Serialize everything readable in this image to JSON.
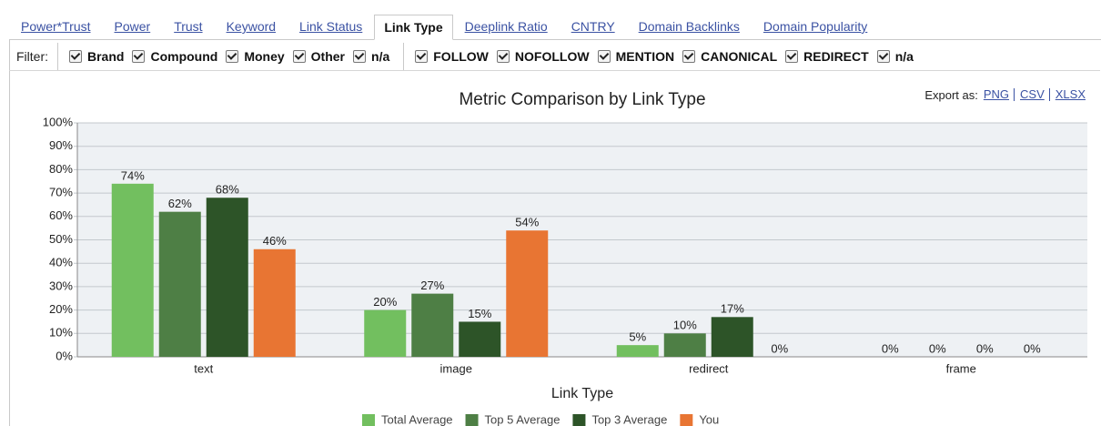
{
  "tabs": [
    {
      "label": "Power*Trust",
      "active": false
    },
    {
      "label": "Power",
      "active": false
    },
    {
      "label": "Trust",
      "active": false
    },
    {
      "label": "Keyword",
      "active": false
    },
    {
      "label": "Link Status",
      "active": false
    },
    {
      "label": "Link Type",
      "active": true
    },
    {
      "label": "Deeplink Ratio",
      "active": false
    },
    {
      "label": "CNTRY",
      "active": false
    },
    {
      "label": "Domain Backlinks",
      "active": false
    },
    {
      "label": "Domain Popularity",
      "active": false
    }
  ],
  "filter": {
    "label": "Filter:",
    "groups": [
      [
        "Brand",
        "Compound",
        "Money",
        "Other",
        "n/a"
      ],
      [
        "FOLLOW",
        "NOFOLLOW",
        "MENTION",
        "CANONICAL",
        "REDIRECT",
        "n/a"
      ]
    ]
  },
  "export": {
    "label": "Export as:",
    "formats": [
      "PNG",
      "CSV",
      "XLSX"
    ]
  },
  "chart_data": {
    "type": "bar",
    "title": "Metric Comparison by Link Type",
    "x_label": "Link Type",
    "categories": [
      "text",
      "image",
      "redirect",
      "frame"
    ],
    "series": [
      {
        "name": "Total Average",
        "color": "#72bf5f",
        "values": [
          74,
          20,
          5,
          0
        ],
        "value_labels": [
          "74%",
          "20%",
          "5%",
          "0%"
        ]
      },
      {
        "name": "Top 5 Average",
        "color": "#4e7f45",
        "values": [
          62,
          27,
          10,
          0
        ],
        "value_labels": [
          "62%",
          "27%",
          "10%",
          "0%"
        ]
      },
      {
        "name": "Top 3 Average",
        "color": "#2d5428",
        "values": [
          68,
          15,
          17,
          0
        ],
        "value_labels": [
          "68%",
          "15%",
          "17%",
          "0%"
        ]
      },
      {
        "name": "You",
        "color": "#e87533",
        "values": [
          46,
          54,
          0,
          0
        ],
        "value_labels": [
          "46%",
          "54%",
          "0%",
          "0%"
        ]
      }
    ],
    "ylim": [
      0,
      100
    ],
    "yticks": [
      {
        "value": 0,
        "label": "0%"
      },
      {
        "value": 10,
        "label": "10%"
      },
      {
        "value": 20,
        "label": "20%"
      },
      {
        "value": 30,
        "label": "30%"
      },
      {
        "value": 40,
        "label": "40%"
      },
      {
        "value": 50,
        "label": "50%"
      },
      {
        "value": 60,
        "label": "60%"
      },
      {
        "value": 70,
        "label": "70%"
      },
      {
        "value": 80,
        "label": "80%"
      },
      {
        "value": 90,
        "label": "90%"
      },
      {
        "value": 100,
        "label": "100%"
      }
    ],
    "grid": true
  }
}
